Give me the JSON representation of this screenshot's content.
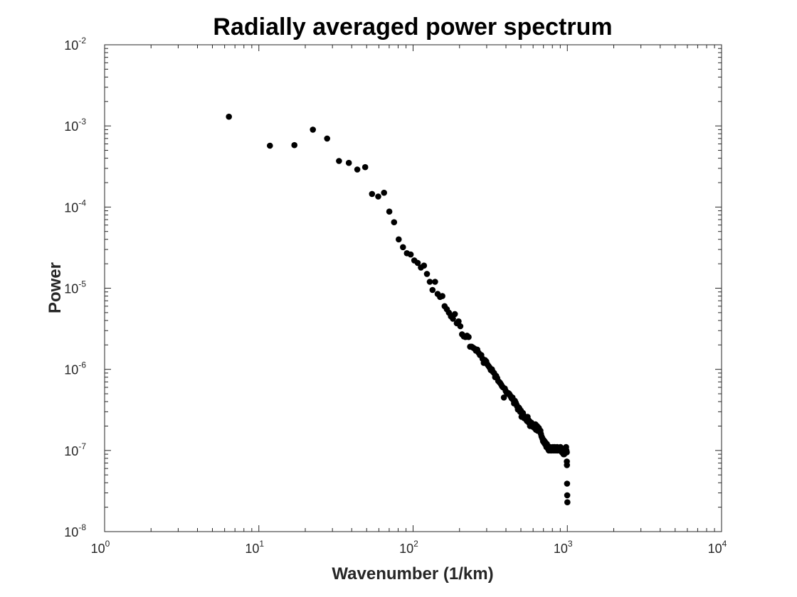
{
  "chart_data": {
    "type": "scatter",
    "title": "Radially averaged power spectrum",
    "xlabel": "Wavenumber (1/km)",
    "ylabel": "Power",
    "xscale": "log",
    "yscale": "log",
    "xlim": [
      1,
      10000
    ],
    "ylim": [
      1e-08,
      0.01
    ],
    "grid": false,
    "legend": "none",
    "marker_color": "#000000",
    "x_ticks": [
      {
        "base": "10",
        "exp": "0",
        "value": 1
      },
      {
        "base": "10",
        "exp": "1",
        "value": 10
      },
      {
        "base": "10",
        "exp": "2",
        "value": 100
      },
      {
        "base": "10",
        "exp": "3",
        "value": 1000
      },
      {
        "base": "10",
        "exp": "4",
        "value": 10000
      }
    ],
    "y_ticks": [
      {
        "base": "10",
        "exp": "-8",
        "value": 1e-08
      },
      {
        "base": "10",
        "exp": "-7",
        "value": 1e-07
      },
      {
        "base": "10",
        "exp": "-6",
        "value": 1e-06
      },
      {
        "base": "10",
        "exp": "-5",
        "value": 1e-05
      },
      {
        "base": "10",
        "exp": "-4",
        "value": 0.0001
      },
      {
        "base": "10",
        "exp": "-3",
        "value": 0.001
      },
      {
        "base": "10",
        "exp": "-2",
        "value": 0.01
      }
    ],
    "points": [
      [
        6.4,
        0.0013
      ],
      [
        11.8,
        0.00057
      ],
      [
        17.0,
        0.00058
      ],
      [
        22.4,
        0.0009
      ],
      [
        27.7,
        0.0007
      ],
      [
        33.1,
        0.00037
      ],
      [
        38.3,
        0.00035
      ],
      [
        43.5,
        0.00029
      ],
      [
        48.9,
        0.00031
      ],
      [
        54.2,
        0.000145
      ],
      [
        59.4,
        0.000135
      ],
      [
        64.8,
        0.00015
      ],
      [
        70.1,
        8.8e-05
      ],
      [
        75.3,
        6.5e-05
      ],
      [
        80.7,
        4e-05
      ],
      [
        86.0,
        3.2e-05
      ],
      [
        91.2,
        2.7e-05
      ],
      [
        96.5,
        2.6e-05
      ],
      [
        101.8,
        2.2e-05
      ],
      [
        107.2,
        2.05e-05
      ],
      [
        112.4,
        1.8e-05
      ],
      [
        117.7,
        1.9e-05
      ],
      [
        123.0,
        1.5e-05
      ],
      [
        128.3,
        1.2e-05
      ],
      [
        133.6,
        9.5e-06
      ],
      [
        138.9,
        1.2e-05
      ],
      [
        144.2,
        8.5e-06
      ],
      [
        149.5,
        7.8e-06
      ],
      [
        154.8,
        8e-06
      ],
      [
        160.1,
        6e-06
      ],
      [
        165.4,
        5.5e-06
      ],
      [
        170.7,
        5e-06
      ],
      [
        176.0,
        4.5e-06
      ],
      [
        181.3,
        4.2e-06
      ],
      [
        186.6,
        4.8e-06
      ],
      [
        191.9,
        3.7e-06
      ],
      [
        197.2,
        3.9e-06
      ],
      [
        202.5,
        3.4e-06
      ],
      [
        207.8,
        2.7e-06
      ],
      [
        213.1,
        2.55e-06
      ],
      [
        218.4,
        2.5e-06
      ],
      [
        223.7,
        2.6e-06
      ],
      [
        229.0,
        2.5e-06
      ],
      [
        234.3,
        1.9e-06
      ],
      [
        239.6,
        1.9e-06
      ],
      [
        244.9,
        1.85e-06
      ],
      [
        250.2,
        1.8e-06
      ],
      [
        255.5,
        1.7e-06
      ],
      [
        260.8,
        1.75e-06
      ],
      [
        266.1,
        1.6e-06
      ],
      [
        271.4,
        1.5e-06
      ],
      [
        276.7,
        1.5e-06
      ],
      [
        282.0,
        1.35e-06
      ],
      [
        287.3,
        1.2e-06
      ],
      [
        292.6,
        1.3e-06
      ],
      [
        297.9,
        1.25e-06
      ],
      [
        303.2,
        1.15e-06
      ],
      [
        308.5,
        1.1e-06
      ],
      [
        313.8,
        1.05e-06
      ],
      [
        319.1,
        9.8e-07
      ],
      [
        324.4,
        1e-06
      ],
      [
        329.7,
        9.3e-07
      ],
      [
        335.0,
        9e-07
      ],
      [
        340.3,
        8e-07
      ],
      [
        345.6,
        8.3e-07
      ],
      [
        350.9,
        7.8e-07
      ],
      [
        356.2,
        7.2e-07
      ],
      [
        361.5,
        7e-07
      ],
      [
        366.8,
        6.8e-07
      ],
      [
        372.1,
        6.5e-07
      ],
      [
        377.4,
        6.2e-07
      ],
      [
        382.7,
        6e-07
      ],
      [
        388.0,
        4.5e-07
      ],
      [
        393.3,
        5.8e-07
      ],
      [
        398.6,
        5.4e-07
      ],
      [
        403.9,
        5.2e-07
      ],
      [
        409.2,
        5e-07
      ],
      [
        414.5,
        5.1e-07
      ],
      [
        419.8,
        5e-07
      ],
      [
        425.1,
        4.8e-07
      ],
      [
        430.4,
        4.6e-07
      ],
      [
        435.7,
        4.4e-07
      ],
      [
        441.0,
        4.5e-07
      ],
      [
        446.3,
        4.2e-07
      ],
      [
        451.6,
        3.8e-07
      ],
      [
        456.9,
        4.1e-07
      ],
      [
        462.2,
        3.9e-07
      ],
      [
        467.5,
        3.7e-07
      ],
      [
        472.8,
        3.5e-07
      ],
      [
        478.1,
        3.2e-07
      ],
      [
        483.4,
        3.4e-07
      ],
      [
        488.7,
        3.3e-07
      ],
      [
        494.0,
        3e-07
      ],
      [
        499.3,
        3.1e-07
      ],
      [
        504.6,
        2.6e-07
      ],
      [
        509.9,
        2.8e-07
      ],
      [
        515.2,
        2.9e-07
      ],
      [
        520.5,
        2.7e-07
      ],
      [
        525.8,
        2.5e-07
      ],
      [
        531.1,
        2.6e-07
      ],
      [
        536.4,
        2.45e-07
      ],
      [
        541.7,
        2.5e-07
      ],
      [
        547.0,
        2.3e-07
      ],
      [
        552.3,
        2.6e-07
      ],
      [
        557.6,
        2.4e-07
      ],
      [
        562.9,
        2.2e-07
      ],
      [
        568.2,
        2.3e-07
      ],
      [
        573.5,
        2e-07
      ],
      [
        578.8,
        2.1e-07
      ],
      [
        584.1,
        2.2e-07
      ],
      [
        589.4,
        2e-07
      ],
      [
        594.7,
        2e-07
      ],
      [
        600.0,
        1.95e-07
      ],
      [
        605.3,
        2.1e-07
      ],
      [
        610.6,
        1.9e-07
      ],
      [
        615.9,
        2e-07
      ],
      [
        621.2,
        2.1e-07
      ],
      [
        626.5,
        1.8e-07
      ],
      [
        631.8,
        1.9e-07
      ],
      [
        637.1,
        2e-07
      ],
      [
        642.4,
        1.75e-07
      ],
      [
        647.7,
        1.8e-07
      ],
      [
        653.0,
        1.9e-07
      ],
      [
        658.3,
        1.8e-07
      ],
      [
        663.6,
        1.7e-07
      ],
      [
        668.9,
        1.75e-07
      ],
      [
        674.2,
        1.6e-07
      ],
      [
        679.5,
        1.5e-07
      ],
      [
        684.8,
        1.45e-07
      ],
      [
        690.1,
        1.4e-07
      ],
      [
        695.4,
        1.3e-07
      ],
      [
        700.7,
        1.35e-07
      ],
      [
        706.0,
        1.25e-07
      ],
      [
        711.3,
        1.3e-07
      ],
      [
        716.6,
        1.2e-07
      ],
      [
        721.9,
        1.25e-07
      ],
      [
        727.2,
        1.15e-07
      ],
      [
        732.5,
        1.1e-07
      ],
      [
        737.8,
        1.2e-07
      ],
      [
        743.1,
        1.1e-07
      ],
      [
        748.4,
        1.05e-07
      ],
      [
        753.7,
        1.1e-07
      ],
      [
        759.0,
        1e-07
      ],
      [
        764.3,
        1.05e-07
      ],
      [
        769.6,
        1.08e-07
      ],
      [
        774.9,
        1.1e-07
      ],
      [
        780.2,
        1e-07
      ],
      [
        785.5,
        1.05e-07
      ],
      [
        790.8,
        1e-07
      ],
      [
        796.1,
        1.08e-07
      ],
      [
        801.4,
        1.02e-07
      ],
      [
        806.7,
        1.1e-07
      ],
      [
        812.0,
        1.05e-07
      ],
      [
        817.3,
        1e-07
      ],
      [
        822.6,
        1.05e-07
      ],
      [
        827.9,
        1.1e-07
      ],
      [
        833.2,
        1.02e-07
      ],
      [
        838.5,
        1.05e-07
      ],
      [
        843.8,
        1e-07
      ],
      [
        849.1,
        1.08e-07
      ],
      [
        854.4,
        1.05e-07
      ],
      [
        859.7,
        1.1e-07
      ],
      [
        865.0,
        1e-07
      ],
      [
        870.3,
        1.05e-07
      ],
      [
        875.6,
        1.08e-07
      ],
      [
        880.9,
        1.02e-07
      ],
      [
        886.2,
        1.05e-07
      ],
      [
        891.5,
        1e-07
      ],
      [
        896.8,
        1.05e-07
      ],
      [
        902.1,
        1.1e-07
      ],
      [
        907.4,
        1e-07
      ],
      [
        912.7,
        9.8e-08
      ],
      [
        918.0,
        1.02e-07
      ],
      [
        923.3,
        9.5e-08
      ],
      [
        928.6,
        1e-07
      ],
      [
        933.9,
        9.3e-08
      ],
      [
        939.2,
        9.5e-08
      ],
      [
        944.5,
        9e-08
      ],
      [
        949.8,
        9.2e-08
      ],
      [
        955.1,
        9e-08
      ],
      [
        960.4,
        9.5e-08
      ],
      [
        965.7,
        1e-07
      ],
      [
        971.0,
        9.8e-08
      ],
      [
        976.3,
        1.05e-07
      ],
      [
        981.6,
        1.1e-07
      ],
      [
        986.9,
        1e-07
      ],
      [
        992.2,
        9.5e-08
      ],
      [
        993.0,
        7.3e-08
      ],
      [
        994.5,
        6.6e-08
      ],
      [
        996.0,
        3.9e-08
      ],
      [
        998.0,
        2.8e-08
      ],
      [
        1000.0,
        2.3e-08
      ]
    ]
  }
}
